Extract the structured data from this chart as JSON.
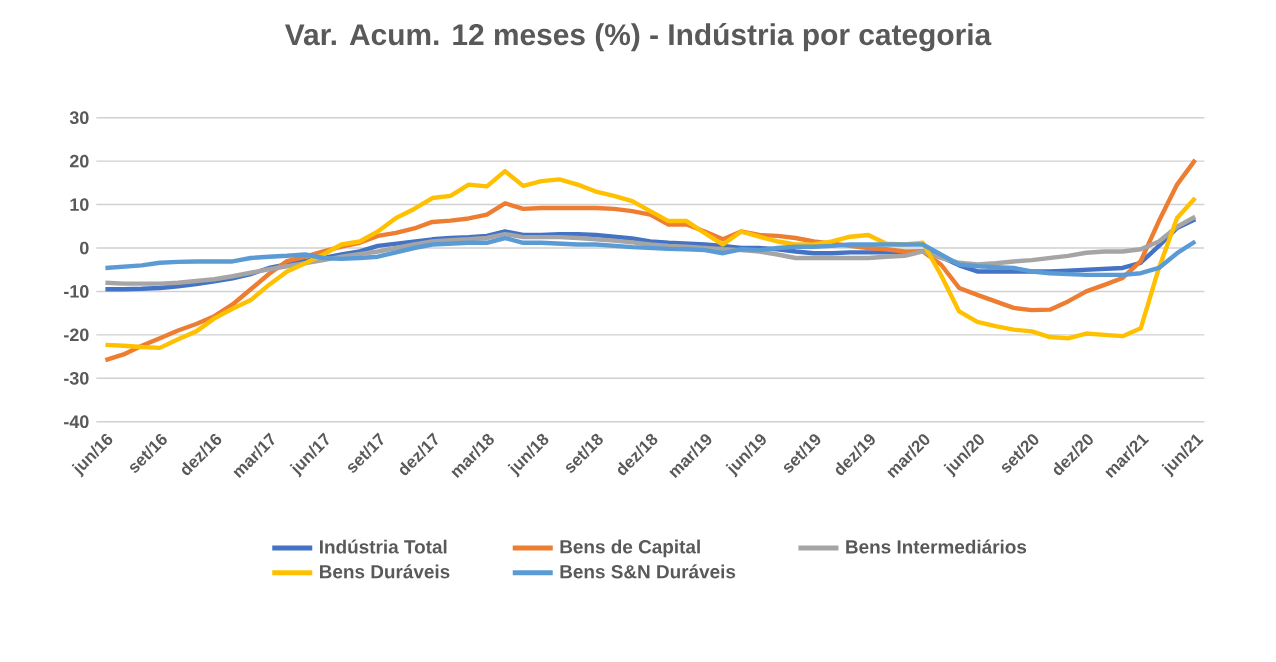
{
  "chart_data": {
    "type": "line",
    "title": "Var. Acum. 12 meses (%) - Indústria por categoria",
    "categories": [
      "jun/16",
      null,
      null,
      "set/16",
      null,
      null,
      "dez/16",
      null,
      null,
      "mar/17",
      null,
      null,
      "jun/17",
      null,
      null,
      "set/17",
      null,
      null,
      "dez/17",
      null,
      null,
      "mar/18",
      null,
      null,
      "jun/18",
      null,
      null,
      "set/18",
      null,
      null,
      "dez/18",
      null,
      null,
      "mar/19",
      null,
      null,
      "jun/19",
      null,
      null,
      "set/19",
      null,
      null,
      "dez/19",
      null,
      null,
      "mar/20",
      null,
      null,
      "jun/20",
      null,
      null,
      "set/20",
      null,
      null,
      "dez/20",
      null,
      null,
      "mar/21",
      null,
      null,
      "jun/21"
    ],
    "series": [
      {
        "name": "Indústria Total",
        "color": "#4472c4",
        "values": [
          -9.5,
          -9.5,
          -9.4,
          -9.2,
          -8.8,
          -8.3,
          -7.7,
          -7,
          -6,
          -4.6,
          -3.8,
          -3,
          -2.3,
          -1.5,
          -0.8,
          0.5,
          1,
          1.5,
          2,
          2.3,
          2.5,
          2.8,
          3.8,
          3,
          3,
          3.2,
          3.2,
          3,
          2.6,
          2.2,
          1.5,
          1.2,
          1,
          0.8,
          0.5,
          0,
          0,
          -0.3,
          -0.8,
          -1.2,
          -1.2,
          -1,
          -1,
          -1,
          -1,
          -0.8,
          -2,
          -4,
          -5.4,
          -5.4,
          -5.4,
          -5.4,
          -5.4,
          -5.2,
          -5,
          -4.8,
          -4.6,
          -3.4,
          0.5,
          4.6,
          6.6
        ]
      },
      {
        "name": "Bens de Capital",
        "color": "#ed7d31",
        "values": [
          -25.8,
          -24.5,
          -22.5,
          -20.8,
          -19,
          -17.5,
          -15.7,
          -13,
          -9.5,
          -6,
          -3,
          -2,
          -0.8,
          0.3,
          1.2,
          2.8,
          3.5,
          4.5,
          6,
          6.3,
          6.8,
          7.7,
          10.3,
          9,
          9.2,
          9.2,
          9.2,
          9.2,
          9,
          8.5,
          7.7,
          5.4,
          5.4,
          3.8,
          2,
          3.8,
          3,
          2.8,
          2.3,
          1.5,
          1,
          0.5,
          0,
          -0.3,
          -0.8,
          -0.8,
          -3.8,
          -9.2,
          -10.8,
          -12.3,
          -13.8,
          -14.3,
          -14.2,
          -12.3,
          -10,
          -8.5,
          -6.9,
          -3,
          6.2,
          14.6,
          20.3
        ]
      },
      {
        "name": "Bens Intermediários",
        "color": "#a5a5a5",
        "values": [
          -8,
          -8.2,
          -8.2,
          -8.2,
          -8,
          -7.6,
          -7.2,
          -6.5,
          -5.7,
          -4.9,
          -4.2,
          -3.5,
          -2.8,
          -2,
          -1.4,
          -0.8,
          0,
          0.8,
          1.5,
          1.8,
          2,
          2.3,
          3.2,
          2.5,
          2.5,
          2.5,
          2.3,
          2,
          1.7,
          1.3,
          0.8,
          0.5,
          0.3,
          0,
          -0.3,
          -0.5,
          -0.8,
          -1.5,
          -2.3,
          -2.3,
          -2.3,
          -2.3,
          -2.3,
          -2,
          -1.8,
          -0.8,
          -2.3,
          -3.4,
          -3.8,
          -3.5,
          -3.1,
          -2.8,
          -2.3,
          -1.8,
          -1.1,
          -0.8,
          -0.8,
          -0.3,
          1.5,
          4.9,
          7.2
        ]
      },
      {
        "name": "Bens Duráveis",
        "color": "#ffc000",
        "values": [
          -22.3,
          -22.5,
          -22.8,
          -23,
          -21,
          -19.2,
          -16.2,
          -14,
          -12,
          -8.5,
          -5.4,
          -3.5,
          -1.5,
          0.8,
          1.5,
          3.8,
          6.9,
          9,
          11.5,
          12,
          14.6,
          14.2,
          17.7,
          14.3,
          15.4,
          15.8,
          14.6,
          13,
          12,
          10.8,
          8.5,
          6.2,
          6.2,
          3.4,
          0.8,
          3.8,
          2.6,
          1.5,
          0.8,
          0.8,
          1.5,
          2.6,
          3,
          1,
          0.8,
          1.2,
          -6.2,
          -14.6,
          -17,
          -18,
          -18.8,
          -19.2,
          -20.5,
          -20.8,
          -19.7,
          -20,
          -20.3,
          -18.5,
          -4.6,
          6.9,
          11.5
        ]
      },
      {
        "name": "Bens S&N Duráveis",
        "color": "#5b9bd5",
        "values": [
          -4.6,
          -4.3,
          -4,
          -3.4,
          -3.2,
          -3.1,
          -3.1,
          -3.1,
          -2.3,
          -2,
          -1.8,
          -1.5,
          -2.3,
          -2.5,
          -2.3,
          -2,
          -1,
          0,
          0.8,
          1,
          1.2,
          1.2,
          2.3,
          1.2,
          1.2,
          1,
          0.8,
          0.8,
          0.5,
          0.2,
          0,
          -0.2,
          -0.3,
          -0.5,
          -1.2,
          -0.3,
          -0.5,
          0,
          0.3,
          0.3,
          0.5,
          0.8,
          0.8,
          0.8,
          0.8,
          0.8,
          -1.5,
          -3.8,
          -4.2,
          -4.4,
          -4.6,
          -5.4,
          -5.8,
          -6,
          -6.2,
          -6.2,
          -6.2,
          -5.8,
          -4.6,
          -1.2,
          1.5
        ]
      }
    ],
    "ylim": [
      -40,
      30
    ],
    "yticks": [
      -40,
      -30,
      -20,
      -10,
      0,
      10,
      20,
      30
    ],
    "grid": "y",
    "legend": "bottom",
    "marker": "none",
    "line_style": "solid"
  }
}
